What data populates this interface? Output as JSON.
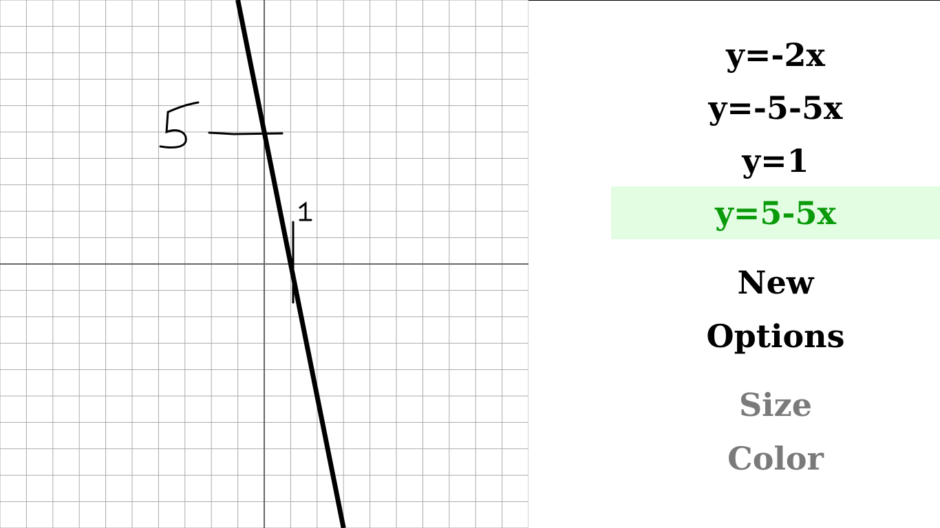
{
  "equations": [
    {
      "label": "y=-2x",
      "selected": false
    },
    {
      "label": "y=-5-5x",
      "selected": false
    },
    {
      "label": "y=1",
      "selected": false
    },
    {
      "label": "y=5-5x",
      "selected": true
    }
  ],
  "actions": {
    "new_label": "New",
    "options_label": "Options"
  },
  "options": {
    "size_label": "Size",
    "color_label": "Color"
  },
  "graph": {
    "x_range": [
      -10,
      10
    ],
    "y_range": [
      -10,
      10
    ],
    "grid_step": 1,
    "plotted_line": {
      "slope": -5,
      "intercept": 5
    },
    "annotations": [
      {
        "text": "5",
        "note": "handwritten, marks y-intercept"
      },
      {
        "text": "1",
        "note": "handwritten, marks x-intercept"
      }
    ]
  },
  "colors": {
    "selected_text": "#0a9a0a",
    "selected_background": "#e3fde3",
    "disabled_text": "#7a7a7a",
    "grid_line": "#aaaaaa",
    "axis_line": "#666666",
    "plot_line": "#000000"
  }
}
